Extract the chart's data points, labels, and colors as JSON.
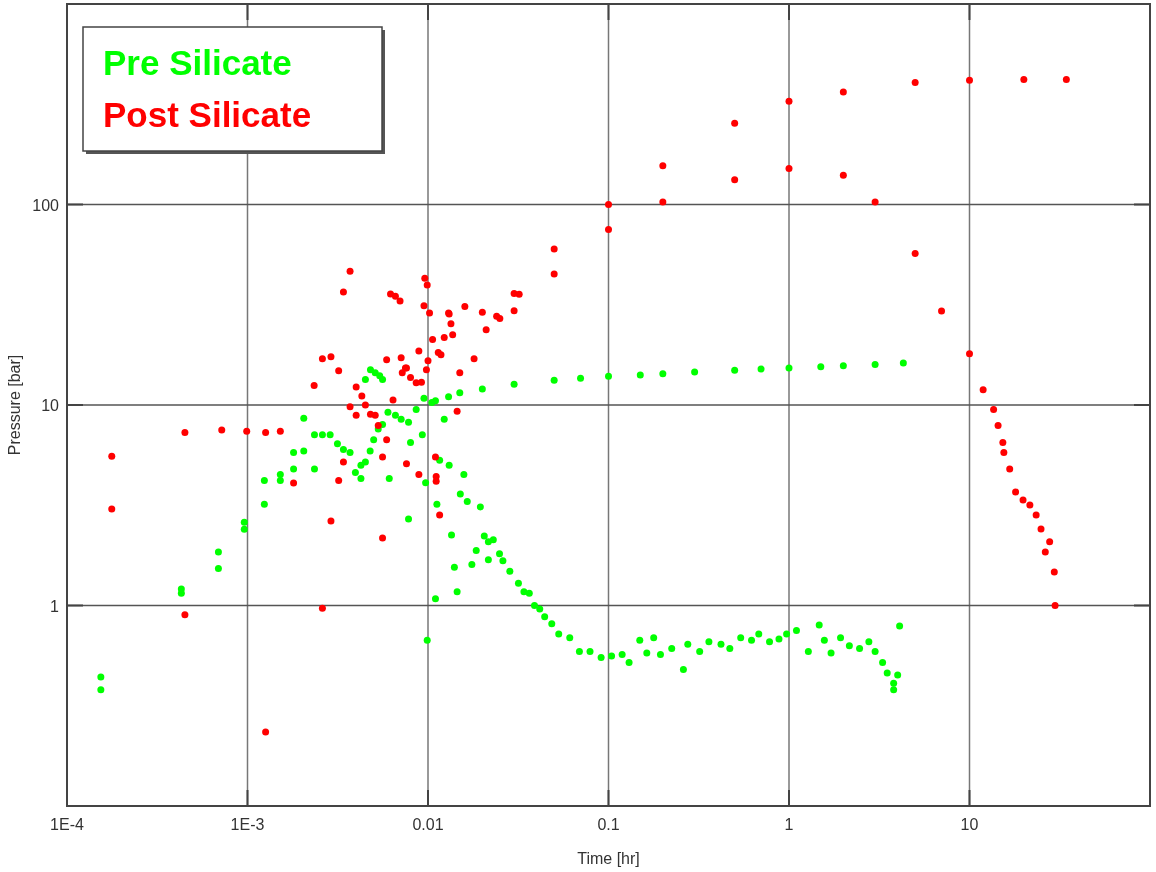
{
  "chart_data": {
    "type": "scatter",
    "xlabel": "Time [hr]",
    "ylabel": "Pressure [bar]",
    "log": "xy",
    "xlim": [
      0.0001,
      100
    ],
    "ylim": [
      0.1,
      1000
    ],
    "xticks": [
      {
        "value": 0.0001,
        "label": "1E-4"
      },
      {
        "value": 0.001,
        "label": "1E-3"
      },
      0.01,
      0.1,
      1,
      10
    ],
    "yticks": [
      1,
      10,
      100
    ],
    "grid": true,
    "legend": "top left",
    "marker": "circle",
    "series": [
      {
        "name": "Pre Silicate",
        "color": "#00ff00",
        "x": [
          0.000154,
          0.000154,
          0.00043,
          0.00043,
          0.00069,
          0.00069,
          0.00096,
          0.00096,
          0.00124,
          0.00124,
          0.00152,
          0.00152,
          0.0018,
          0.0018,
          0.00205,
          0.00205,
          0.00235,
          0.00235,
          0.0026,
          0.00287,
          0.00315,
          0.0034,
          0.0037,
          0.00396,
          0.00425,
          0.0045,
          0.00425,
          0.00478,
          0.005,
          0.0053,
          0.0056,
          0.006,
          0.0066,
          0.0071,
          0.0078,
          0.0045,
          0.0048,
          0.0051,
          0.0054,
          0.0056,
          0.0061,
          0.0078,
          0.008,
          0.0093,
          0.0097,
          0.0099,
          0.011,
          0.0123,
          0.0086,
          0.0095,
          0.0105,
          0.011,
          0.013,
          0.015,
          0.02,
          0.03,
          0.05,
          0.07,
          0.1,
          0.15,
          0.2,
          0.3,
          0.5,
          0.7,
          1,
          1.5,
          2,
          3,
          4.3,
          0.0112,
          0.0116,
          0.0131,
          0.0135,
          0.014,
          0.0145,
          0.0151,
          0.0158,
          0.0165,
          0.0175,
          0.0185,
          0.0195,
          0.0205,
          0.0216,
          0.023,
          0.0216,
          0.0249,
          0.026,
          0.0284,
          0.0317,
          0.034,
          0.0364,
          0.0389,
          0.0416,
          0.0443,
          0.0485,
          0.053,
          0.061,
          0.069,
          0.079,
          0.091,
          0.104,
          0.119,
          0.13,
          0.149,
          0.163,
          0.178,
          0.194,
          0.224,
          0.26,
          0.275,
          0.32,
          0.36,
          0.42,
          0.47,
          0.54,
          0.62,
          0.68,
          0.78,
          0.88,
          0.97,
          1.1,
          1.28,
          1.47,
          1.57,
          1.71,
          1.93,
          2.16,
          2.46,
          2.77,
          3.0,
          3.3,
          3.5,
          3.8,
          3.8,
          4.0,
          4.1
        ],
        "values": [
          0.44,
          0.38,
          1.21,
          1.15,
          1.85,
          1.53,
          2.6,
          2.4,
          3.2,
          4.2,
          4.5,
          4.2,
          5.8,
          4.8,
          8.6,
          5.9,
          7.1,
          4.8,
          7.1,
          7.1,
          6.4,
          6.0,
          5.8,
          4.6,
          5.0,
          5.2,
          4.3,
          5.9,
          6.7,
          7.6,
          8.0,
          9.2,
          8.9,
          8.5,
          8.2,
          13.4,
          15,
          14.5,
          14,
          13.4,
          4.3,
          2.7,
          6.5,
          7.1,
          4.1,
          0.67,
          1.08,
          8.5,
          9.5,
          10.8,
          10.3,
          10.5,
          11.0,
          11.5,
          12.0,
          12.7,
          13.3,
          13.6,
          13.9,
          14.1,
          14.3,
          14.6,
          14.9,
          15.1,
          15.3,
          15.5,
          15.7,
          15.9,
          16.2,
          3.2,
          5.3,
          5.0,
          2.25,
          1.55,
          1.17,
          3.6,
          4.5,
          3.3,
          1.6,
          1.88,
          3.1,
          2.22,
          2.08,
          2.13,
          1.69,
          1.81,
          1.67,
          1.48,
          1.29,
          1.17,
          1.15,
          1.0,
          0.96,
          0.88,
          0.81,
          0.72,
          0.69,
          0.59,
          0.59,
          0.55,
          0.56,
          0.57,
          0.52,
          0.67,
          0.58,
          0.69,
          0.57,
          0.61,
          0.48,
          0.64,
          0.59,
          0.66,
          0.64,
          0.61,
          0.69,
          0.67,
          0.72,
          0.66,
          0.68,
          0.72,
          0.75,
          0.59,
          0.8,
          0.67,
          0.58,
          0.69,
          0.63,
          0.61,
          0.66,
          0.59,
          0.52,
          0.46,
          0.38,
          0.41,
          0.45,
          0.79
        ]
      },
      {
        "name": "Post Silicate",
        "color": "#ff0000",
        "x": [
          0.000177,
          0.000177,
          0.00045,
          0.00045,
          0.00072,
          0.00099,
          0.00126,
          0.00152,
          0.00126,
          0.0018,
          0.00234,
          0.0026,
          0.0029,
          0.0032,
          0.0026,
          0.0029,
          0.0032,
          0.0034,
          0.0037,
          0.0034,
          0.0037,
          0.004,
          0.004,
          0.0043,
          0.0045,
          0.0048,
          0.0051,
          0.0053,
          0.0056,
          0.0056,
          0.0059,
          0.0059,
          0.0062,
          0.0066,
          0.007,
          0.0064,
          0.0071,
          0.0072,
          0.0076,
          0.0076,
          0.008,
          0.0086,
          0.0092,
          0.0089,
          0.0089,
          0.0095,
          0.0096,
          0.0099,
          0.0098,
          0.01,
          0.0102,
          0.0106,
          0.011,
          0.0111,
          0.0111,
          0.0116,
          0.0114,
          0.0131,
          0.0134,
          0.0123,
          0.0137,
          0.0118,
          0.0145,
          0.015,
          0.018,
          0.021,
          0.024,
          0.032,
          0.016,
          0.013,
          0.0075,
          0.02,
          0.03,
          0.05,
          0.1,
          0.2,
          0.5,
          1,
          2,
          5,
          10,
          20,
          34.4,
          0.025,
          0.03,
          0.05,
          0.1,
          0.2,
          0.5,
          1,
          2,
          3,
          5,
          7,
          10,
          11.9,
          13.6,
          14.4,
          15.3,
          15.5,
          16.7,
          18.0,
          19.8,
          21.6,
          23.4,
          24.9,
          26.3,
          27.8,
          29.5,
          29.8
        ],
        "values": [
          5.55,
          3.03,
          7.3,
          0.9,
          7.5,
          7.4,
          7.3,
          7.4,
          0.234,
          4.08,
          12.5,
          17.0,
          17.4,
          14.8,
          0.97,
          2.64,
          4.2,
          36.6,
          46.5,
          5.2,
          9.8,
          12.3,
          8.9,
          11.1,
          10.0,
          9.0,
          8.9,
          7.9,
          5.5,
          2.17,
          6.7,
          16.8,
          35.8,
          34.9,
          33.0,
          10.6,
          17.2,
          14.5,
          15.3,
          5.1,
          13.7,
          12.9,
          13.0,
          18.6,
          4.5,
          31.3,
          42.9,
          39.7,
          15.0,
          16.6,
          28.8,
          21.2,
          5.5,
          4.4,
          4.17,
          2.83,
          18.3,
          28.4,
          25.4,
          21.7,
          22.4,
          17.8,
          9.3,
          14.5,
          17,
          23.7,
          27.7,
          35.7,
          31,
          28.8,
          15.3,
          29,
          36,
          60,
          100,
          156,
          254,
          327,
          364,
          406,
          417,
          420,
          420,
          27,
          29.5,
          45,
          75,
          103,
          133,
          151,
          140,
          103,
          57,
          29.4,
          18,
          11.9,
          9.5,
          7.9,
          6.5,
          5.8,
          4.79,
          3.68,
          3.36,
          3.17,
          2.83,
          2.41,
          1.85,
          2.08,
          1.47,
          1.0
        ]
      }
    ]
  }
}
